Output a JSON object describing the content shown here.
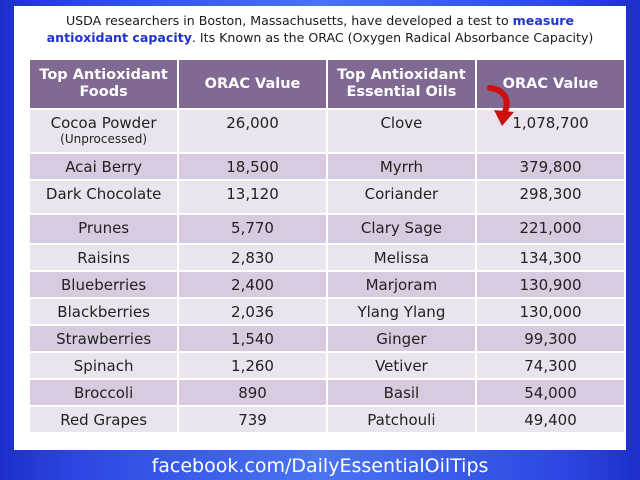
{
  "header": {
    "line1_pre": "USDA researchers in Boston, Massachusetts, have developed a test to",
    "line1_highlight": "measure",
    "line2_highlight": "antioxidant capacity",
    "line2_post": ".  Its Known as the ORAC (Oxygen Radical Absorbance Capacity)"
  },
  "table": {
    "headers": [
      "Top Antioxidant Foods",
      "ORAC Value",
      "Top Antioxidant Essential Oils",
      "ORAC Value"
    ],
    "first_row": {
      "food": "Cocoa Powder",
      "food_note": "(Unprocessed)",
      "food_value": "26,000",
      "oil": "Clove",
      "oil_value": "1,078,700"
    },
    "rows": [
      {
        "food": "Acai Berry",
        "food_value": "18,500",
        "oil": "Myrrh",
        "oil_value": "379,800"
      },
      {
        "food": "Dark Chocolate",
        "food_value": "13,120",
        "oil": "Coriander",
        "oil_value": "298,300"
      },
      {
        "food": "Prunes",
        "food_value": "5,770",
        "oil": "Clary Sage",
        "oil_value": "221,000"
      },
      {
        "food": "Raisins",
        "food_value": "2,830",
        "oil": "Melissa",
        "oil_value": "134,300"
      },
      {
        "food": "Blueberries",
        "food_value": "2,400",
        "oil": "Marjoram",
        "oil_value": "130,900"
      },
      {
        "food": "Blackberries",
        "food_value": "2,036",
        "oil": "Ylang Ylang",
        "oil_value": "130,000"
      },
      {
        "food": "Strawberries",
        "food_value": "1,540",
        "oil": "Ginger",
        "oil_value": "99,300"
      },
      {
        "food": "Spinach",
        "food_value": "1,260",
        "oil": "Vetiver",
        "oil_value": "74,300"
      },
      {
        "food": "Broccoli",
        "food_value": "890",
        "oil": "Basil",
        "oil_value": "54,000"
      },
      {
        "food": "Red Grapes",
        "food_value": "739",
        "oil": "Patchouli",
        "oil_value": "49,400"
      }
    ]
  },
  "footer": {
    "link": "facebook.com/DailyEssentialOilTips"
  },
  "colors": {
    "header_bg": "#806a93",
    "row_light": "#ebe4ef",
    "row_dark": "#d8cbe0",
    "highlight_text": "#2233cc",
    "arrow": "#cc1111"
  },
  "icons": {
    "pointer": "red-curved-arrow-icon"
  }
}
